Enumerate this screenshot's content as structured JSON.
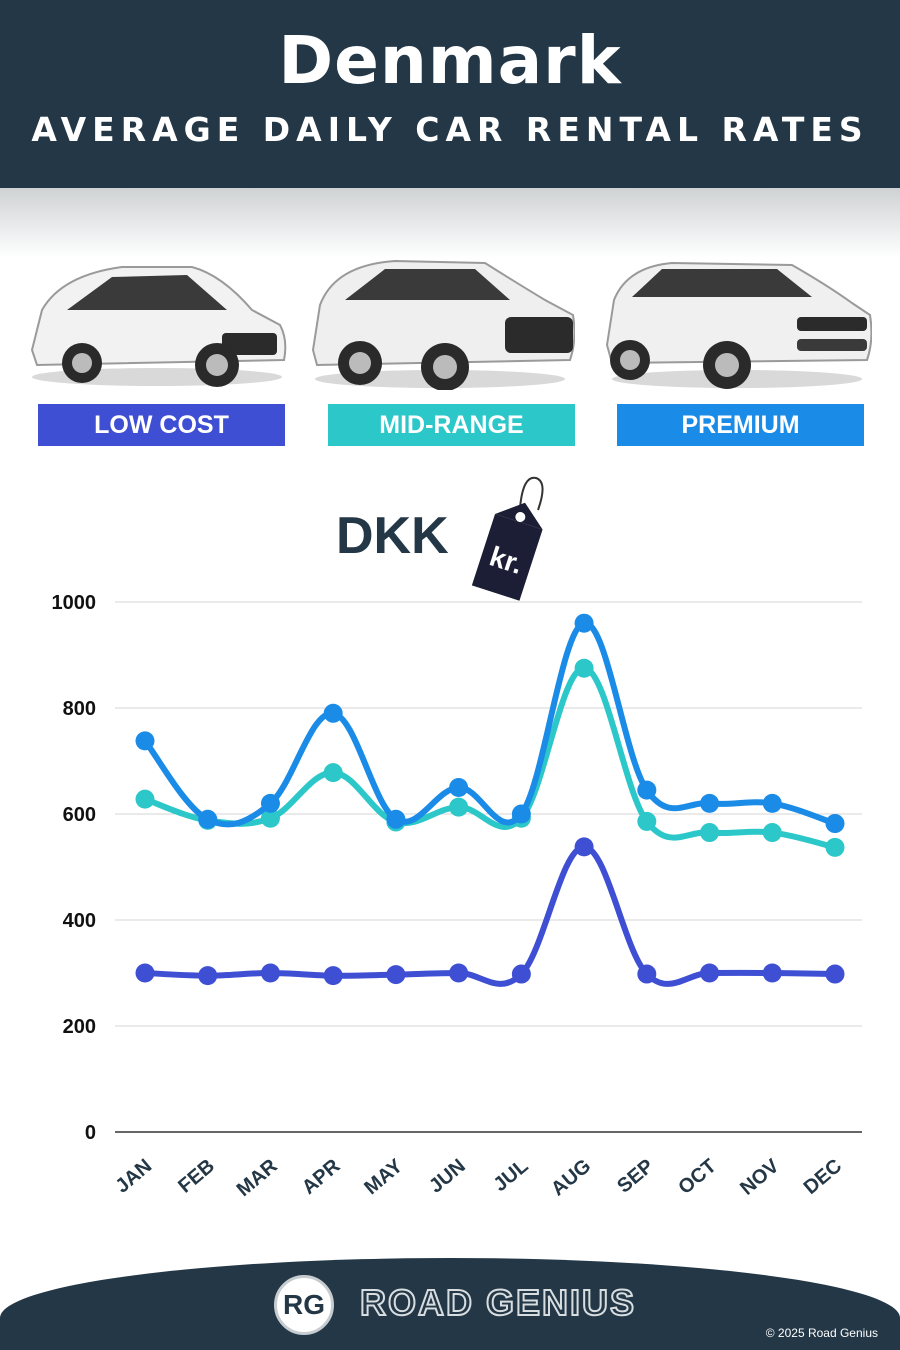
{
  "header": {
    "title": "Denmark",
    "subtitle": "AVERAGE DAILY CAR RENTAL RATES"
  },
  "categories": [
    {
      "label": "LOW COST",
      "color": "#3f4fd4"
    },
    {
      "label": "MID-RANGE",
      "color": "#2cc7c9"
    },
    {
      "label": "PREMIUM",
      "color": "#1a8be6"
    }
  ],
  "currency": {
    "code": "DKK",
    "symbol": "kr."
  },
  "chart_data": {
    "type": "line",
    "categories": [
      "JAN",
      "FEB",
      "MAR",
      "APR",
      "MAY",
      "JUN",
      "JUL",
      "AUG",
      "SEP",
      "OCT",
      "NOV",
      "DEC"
    ],
    "series": [
      {
        "name": "PREMIUM",
        "color": "#1a8be6",
        "values": [
          738,
          590,
          620,
          790,
          590,
          650,
          600,
          960,
          645,
          620,
          620,
          582
        ]
      },
      {
        "name": "MID-RANGE",
        "color": "#2cc7c9",
        "values": [
          628,
          588,
          592,
          678,
          585,
          613,
          592,
          875,
          586,
          565,
          565,
          537
        ]
      },
      {
        "name": "LOW COST",
        "color": "#3f4fd4",
        "values": [
          300,
          295,
          300,
          295,
          297,
          300,
          298,
          538,
          298,
          300,
          300,
          298
        ]
      }
    ],
    "yticks": [
      0,
      200,
      400,
      600,
      800,
      1000
    ],
    "ylim": [
      0,
      1000
    ],
    "grid": true
  },
  "footer": {
    "logo_initials": "RG",
    "brand": "ROAD GENIUS",
    "copyright": "© 2025 Road Genius"
  }
}
